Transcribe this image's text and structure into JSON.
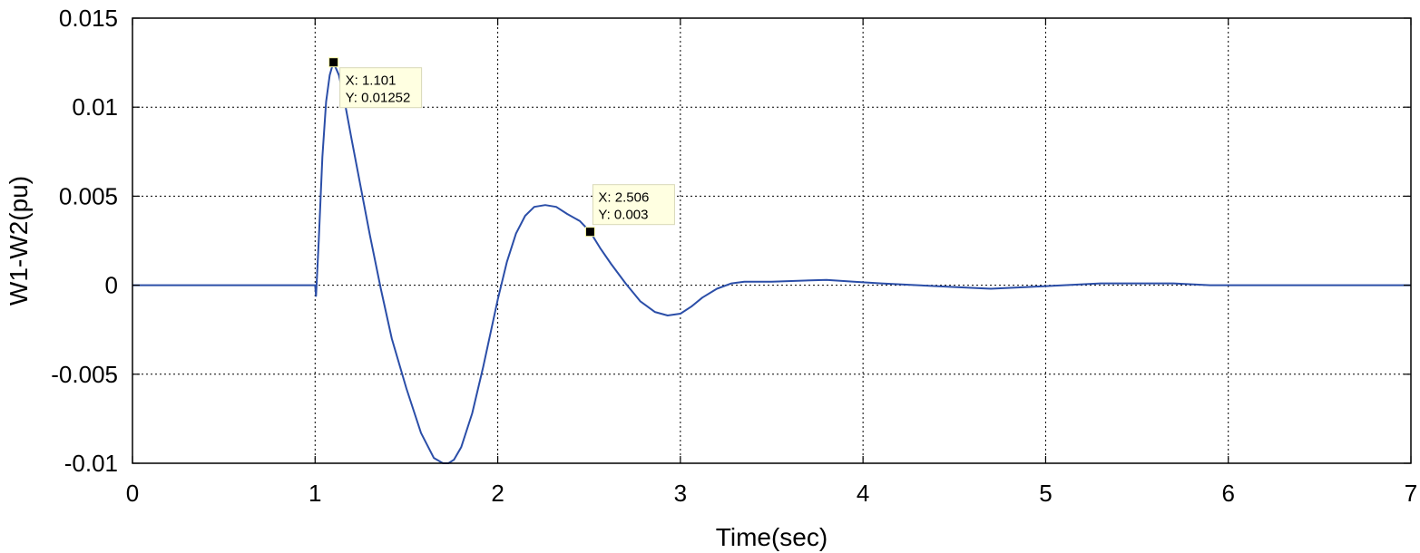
{
  "chart_data": {
    "type": "line",
    "title": "",
    "xlabel": "Time(sec)",
    "ylabel": "W1-W2(pu)",
    "xlim": [
      0,
      7
    ],
    "ylim": [
      -0.01,
      0.015
    ],
    "x_ticks": [
      0,
      1,
      2,
      3,
      4,
      5,
      6,
      7
    ],
    "x_tick_labels": [
      "0",
      "1",
      "2",
      "3",
      "4",
      "5",
      "6",
      "7"
    ],
    "y_ticks": [
      0.015,
      0.01,
      0.005,
      0,
      -0.005,
      -0.01
    ],
    "y_tick_labels": [
      "0.015",
      "0.01",
      "0.005",
      "0",
      "-0.005",
      "-0.01"
    ],
    "grid": true,
    "series_color": "#2b4ea8",
    "series": [
      {
        "x": [
          0,
          1.0,
          1.005,
          1.02,
          1.04,
          1.06,
          1.08,
          1.1,
          1.13,
          1.16,
          1.2,
          1.25,
          1.3,
          1.36,
          1.42,
          1.5,
          1.58,
          1.65,
          1.7,
          1.73,
          1.76,
          1.8,
          1.86,
          1.92,
          2.0,
          2.05,
          2.1,
          2.15,
          2.2,
          2.26,
          2.32,
          2.38,
          2.45,
          2.506,
          2.56,
          2.62,
          2.7,
          2.78,
          2.86,
          2.93,
          3.0,
          3.06,
          3.12,
          3.2,
          3.28,
          3.35,
          3.5,
          3.8,
          3.95,
          4.1,
          4.3,
          4.5,
          4.7,
          4.9,
          5.1,
          5.3,
          5.5,
          5.7,
          5.9,
          6.2,
          7.0
        ],
        "y": [
          0,
          0,
          -0.0006,
          0.0025,
          0.0072,
          0.0103,
          0.0118,
          0.01252,
          0.0118,
          0.0104,
          0.0082,
          0.0055,
          0.0028,
          -0.0002,
          -0.003,
          -0.0058,
          -0.0083,
          -0.0097,
          -0.01,
          -0.01,
          -0.0098,
          -0.0091,
          -0.0072,
          -0.0046,
          -0.0008,
          0.0013,
          0.0029,
          0.0039,
          0.0044,
          0.0045,
          0.0044,
          0.004,
          0.0036,
          0.003,
          0.0021,
          0.0012,
          0.0001,
          -0.0009,
          -0.0015,
          -0.0017,
          -0.0016,
          -0.0012,
          -0.0007,
          -0.0002,
          0.0001,
          0.0002,
          0.0002,
          0.0003,
          0.0002,
          0.0001,
          0.0,
          -0.0001,
          -0.0002,
          -0.0001,
          0.0,
          0.0001,
          0.0001,
          0.0001,
          0.0,
          0.0,
          0.0
        ]
      }
    ],
    "datatips": [
      {
        "x": 1.101,
        "y": 0.01252,
        "x_text": "X: 1.101",
        "y_text": "Y: 0.01252"
      },
      {
        "x": 2.506,
        "y": 0.003,
        "x_text": "X: 2.506",
        "y_text": "Y: 0.003"
      }
    ]
  }
}
